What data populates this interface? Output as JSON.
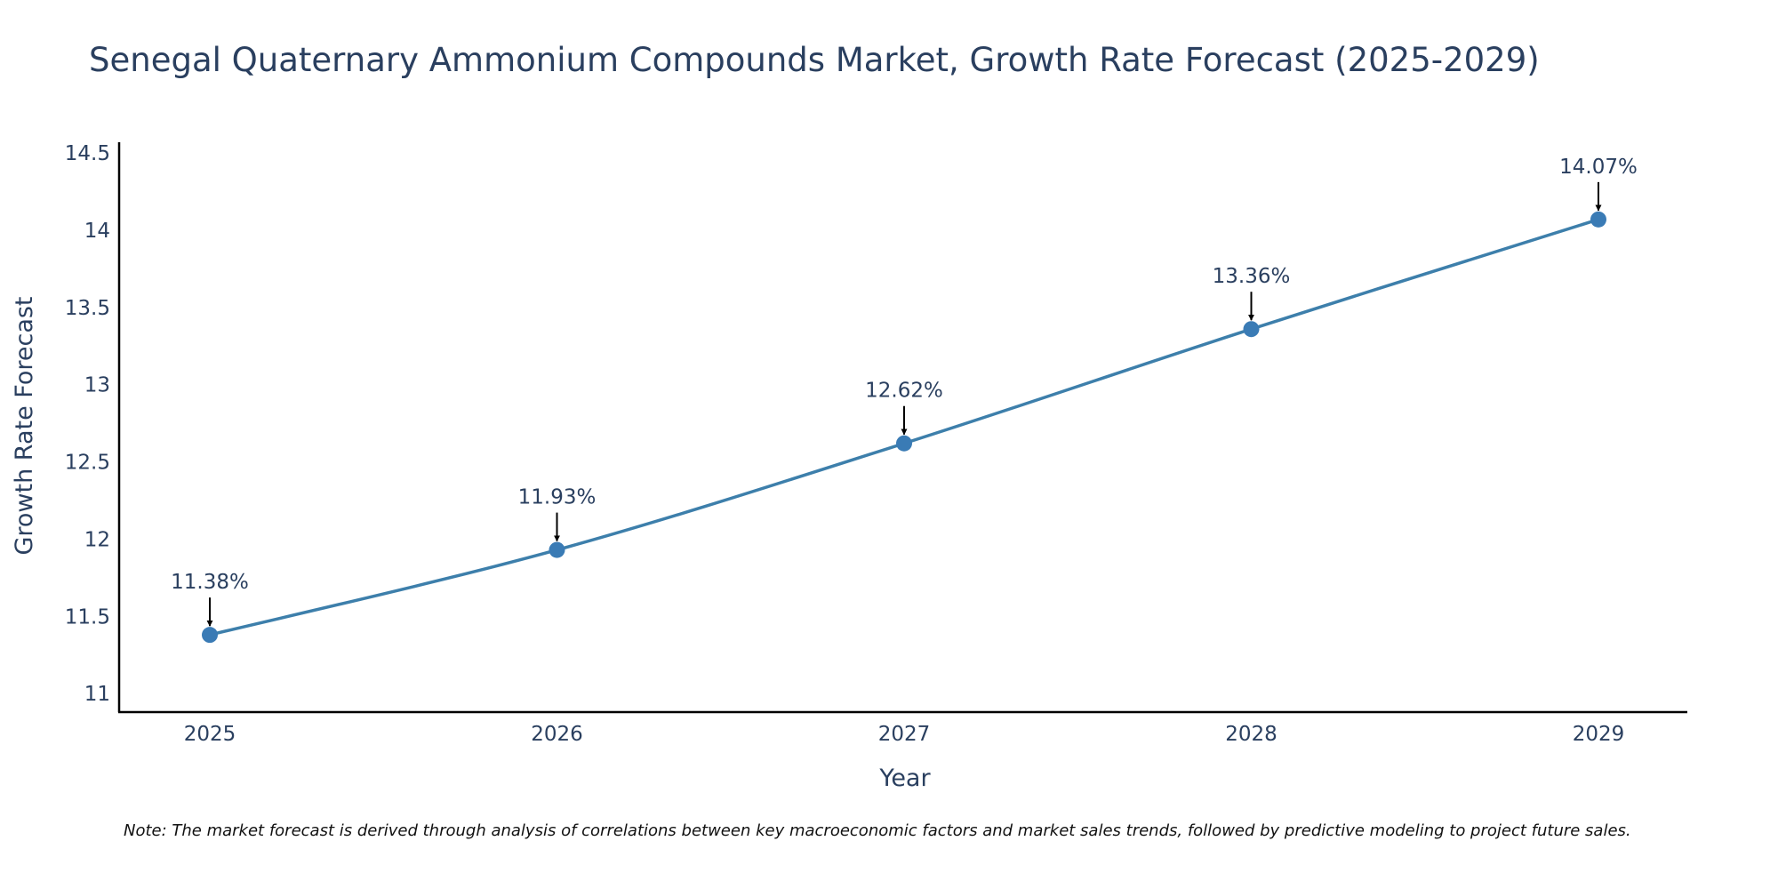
{
  "chart_data": {
    "type": "line",
    "title": "Senegal Quaternary Ammonium Compounds Market, Growth Rate Forecast (2025-2029)",
    "xlabel": "Year",
    "ylabel": "Growth Rate Forecast",
    "categories": [
      "2025",
      "2026",
      "2027",
      "2028",
      "2029"
    ],
    "values": [
      11.38,
      11.93,
      12.62,
      13.36,
      14.07
    ],
    "data_labels": [
      "11.38%",
      "11.93%",
      "12.62%",
      "13.36%",
      "14.07%"
    ],
    "ylim": [
      10.88,
      14.57
    ],
    "y_ticks": [
      11,
      11.5,
      12,
      12.5,
      13,
      13.5,
      14,
      14.5
    ],
    "y_tick_labels": [
      "11",
      "11.5",
      "12",
      "12.5",
      "13",
      "13.5",
      "14",
      "14.5"
    ],
    "grid": false,
    "line_color": "#3d7fab",
    "marker_color": "#3a7bb5",
    "note": "Note: The market forecast is derived through analysis of correlations between key macroeconomic factors and market sales trends, followed by predictive modeling to project future sales."
  }
}
